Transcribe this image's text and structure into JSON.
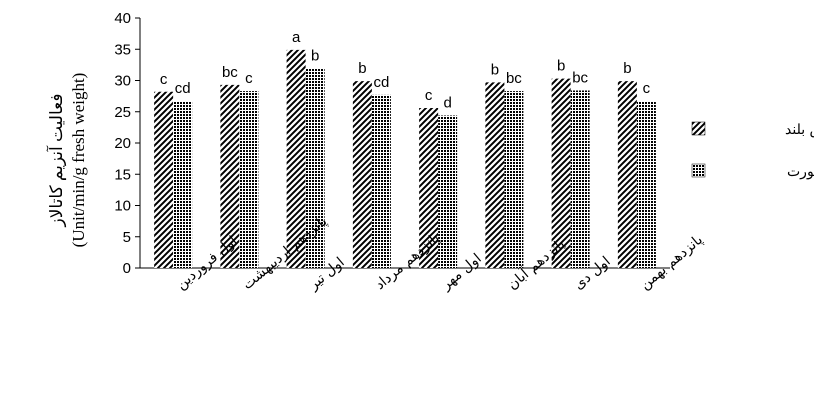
{
  "chart_data": {
    "type": "bar",
    "ylabel_line1": "فعالیت آنزیم کاتالاز",
    "ylabel_line2": "(Unit/min/g fresh weight)",
    "ylim": [
      0,
      40
    ],
    "yticks": [
      0,
      5,
      10,
      15,
      20,
      25,
      30,
      35,
      40
    ],
    "grid": false,
    "legend_position": "right",
    "categories": [
      "اول فروردین",
      "پانزدهم اردیبهشت",
      "اول تیر",
      "پانزدهم مرداد",
      "اول مهر",
      "پانزدهم آبان",
      "اول دی",
      "پانزدهم بهمن"
    ],
    "series": [
      {
        "name": "چمانواش بلند",
        "pattern": "diagonal-stripes",
        "values": [
          28.2,
          29.3,
          34.9,
          29.9,
          25.6,
          29.7,
          30.3,
          29.9
        ],
        "labels": [
          "c",
          "bc",
          "a",
          "b",
          "c",
          "b",
          "b",
          "b"
        ]
      },
      {
        "name": "چمن اسپورت",
        "pattern": "dotted",
        "values": [
          26.7,
          28.3,
          31.9,
          27.7,
          24.4,
          28.3,
          28.4,
          26.7
        ],
        "labels": [
          "cd",
          "c",
          "b",
          "cd",
          "d",
          "bc",
          "bc",
          "c"
        ]
      }
    ],
    "colors": {
      "bar_ink": "#000000",
      "background": "#ffffff"
    }
  }
}
